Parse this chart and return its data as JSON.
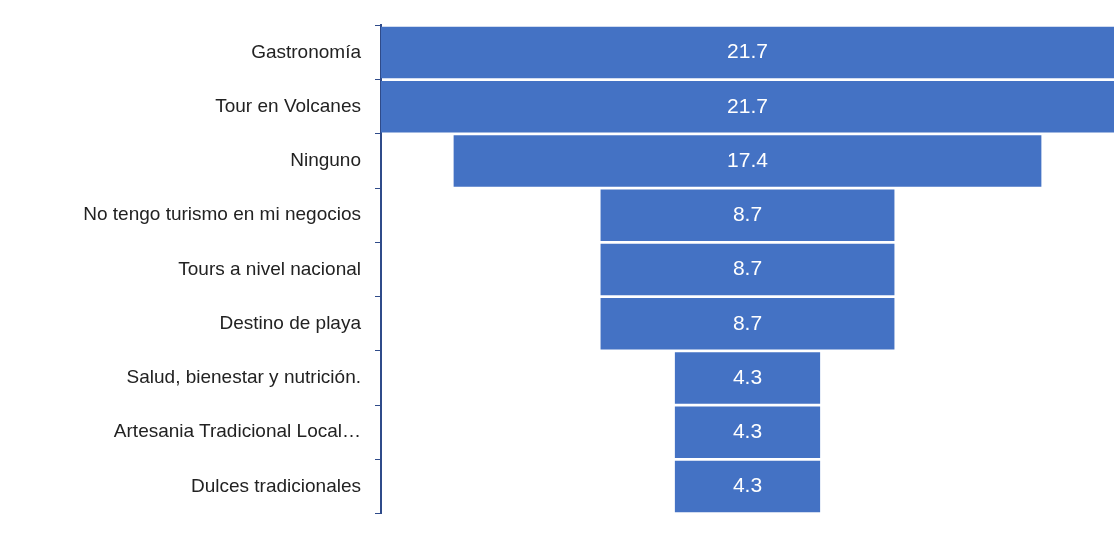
{
  "chart_data": {
    "type": "other",
    "categories": [
      "Gastronomía",
      "Tour en Volcanes",
      "Ninguno",
      "No tengo turismo en mi negocios",
      "Tours a nivel nacional",
      "Destino de playa",
      "Salud, bienestar y nutrición.",
      "Artesania Tradicional Local…",
      "Dulces tradicionales"
    ],
    "values": [
      21.7,
      21.7,
      17.4,
      8.7,
      8.7,
      8.7,
      4.3,
      4.3,
      4.3
    ],
    "color": "#4472c4",
    "data_labels": true
  }
}
